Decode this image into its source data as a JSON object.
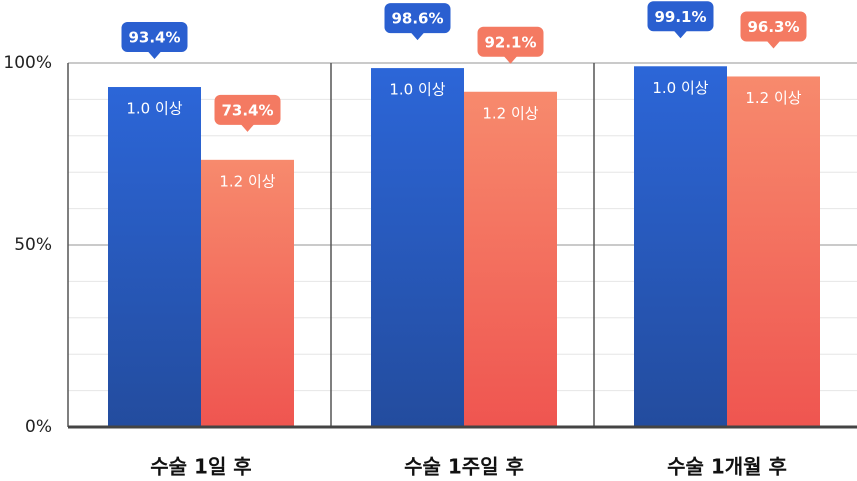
{
  "chart_data": {
    "type": "bar",
    "categories": [
      "수술 1일 후",
      "수술 1주일 후",
      "수술 1개월 후"
    ],
    "series": [
      {
        "name": "1.0 이상",
        "color": "#2a5fd0",
        "values": [
          93.4,
          98.6,
          99.1
        ],
        "value_labels": [
          "93.4%",
          "98.6%",
          "99.1%"
        ]
      },
      {
        "name": "1.2 이상",
        "color": "#f47a62",
        "values": [
          73.4,
          92.1,
          96.3
        ],
        "value_labels": [
          "73.4%",
          "92.1%",
          "96.3%"
        ]
      }
    ],
    "ylim": [
      0,
      100
    ],
    "yticks": [
      {
        "value": 0,
        "label": "0%"
      },
      {
        "value": 50,
        "label": "50%"
      },
      {
        "value": 100,
        "label": "100%"
      }
    ],
    "minor_yticks": [
      10,
      20,
      30,
      40,
      60,
      70,
      80,
      90
    ],
    "grid": true
  }
}
